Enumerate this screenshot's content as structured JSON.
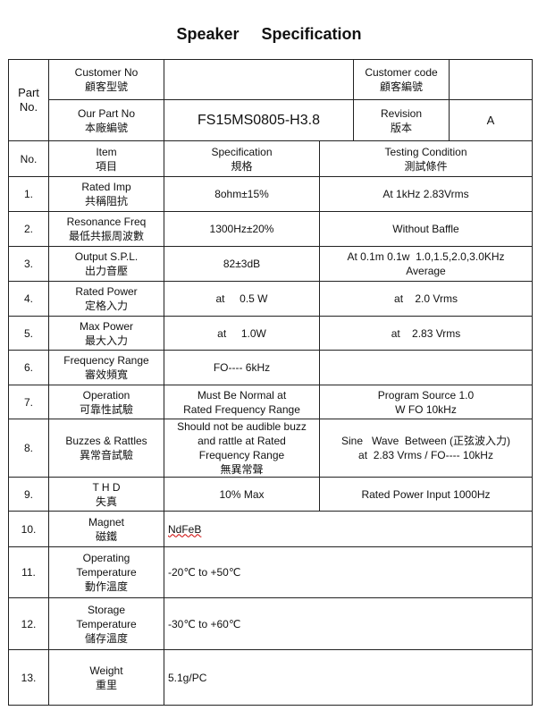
{
  "title": {
    "word1": "Speaker",
    "word2": "Specification"
  },
  "header": {
    "part_no_label": "Part No.",
    "customer_no_label_en": "Customer No",
    "customer_no_label_zh": "顧客型號",
    "customer_no_value": "",
    "customer_code_label_en": "Customer code",
    "customer_code_label_zh": "顧客編號",
    "customer_code_value": "",
    "our_part_no_label_en": "Our Part No",
    "our_part_no_label_zh": "本廠編號",
    "our_part_no_value": "FS15MS0805-H3.8",
    "revision_label_en": "Revision",
    "revision_label_zh": "版本",
    "revision_value": "A"
  },
  "columns": {
    "no": "No.",
    "item_en": "Item",
    "item_zh": "項目",
    "spec_en": "Specification",
    "spec_zh": "規格",
    "cond_en": "Testing Condition",
    "cond_zh": "測試條件"
  },
  "rows": [
    {
      "no": "1.",
      "item_en": "Rated Imp",
      "item_zh": "共稱阻抗",
      "spec": [
        "8ohm±15%"
      ],
      "cond": [
        "At 1kHz 2.83Vrms"
      ]
    },
    {
      "no": "2.",
      "item_en": "Resonance Freq",
      "item_zh": "最低共振周波數",
      "spec": [
        "1300Hz±20%"
      ],
      "cond": [
        "Without Baffle"
      ]
    },
    {
      "no": "3.",
      "item_en": "Output S.P.L.",
      "item_zh": "出力音壓",
      "spec": [
        "82±3dB"
      ],
      "cond": [
        "At 0.1m 0.1w  1.0,1.5,2.0,3.0KHz",
        "Average"
      ]
    },
    {
      "no": "4.",
      "item_en": "Rated Power",
      "item_zh": "定格入力",
      "spec": [
        "at     0.5 W"
      ],
      "cond": [
        "at    2.0 Vrms"
      ]
    },
    {
      "no": "5.",
      "item_en": "Max Power",
      "item_zh": "最大入力",
      "spec": [
        "at     1.0W"
      ],
      "cond": [
        "at    2.83 Vrms"
      ]
    },
    {
      "no": "6.",
      "item_en": "Frequency Range",
      "item_zh": "審效頻寬",
      "spec": [
        "FO---- 6kHz"
      ],
      "cond": [
        ""
      ]
    },
    {
      "no": "7.",
      "item_en": "Operation",
      "item_zh": "可靠性試驗",
      "spec": [
        "Must Be Normal at",
        "Rated Frequency Range"
      ],
      "cond": [
        "Program Source 1.0",
        "W FO 10kHz"
      ]
    },
    {
      "no": "8.",
      "item_en": "Buzzes & Rattles",
      "item_zh": "異常音試驗",
      "spec": [
        "Should not be audible buzz",
        "and rattle at Rated",
        "Frequency Range",
        "無異常聲"
      ],
      "cond": [
        "Sine   Wave  Between (正弦波入力)",
        "at  2.83 Vrms / FO---- 10kHz"
      ]
    },
    {
      "no": "9.",
      "item_en": "T     H     D",
      "item_zh": "失真",
      "spec": [
        "10% Max"
      ],
      "cond": [
        "Rated Power Input 1000Hz"
      ]
    }
  ],
  "wide_rows": [
    {
      "no": "10.",
      "item": [
        "Magnet",
        "磁鐵"
      ],
      "value": "NdFeB"
    },
    {
      "no": "11.",
      "item": [
        "Operating",
        "Temperature",
        "動作溫度"
      ],
      "value": "-20℃ to +50℃"
    },
    {
      "no": "12.",
      "item": [
        "Storage",
        "Temperature",
        "儲存溫度"
      ],
      "value": "-30℃ to +60℃"
    },
    {
      "no": "13.",
      "item": [
        "Weight",
        "重里"
      ],
      "value": "5.1g/PC"
    }
  ]
}
